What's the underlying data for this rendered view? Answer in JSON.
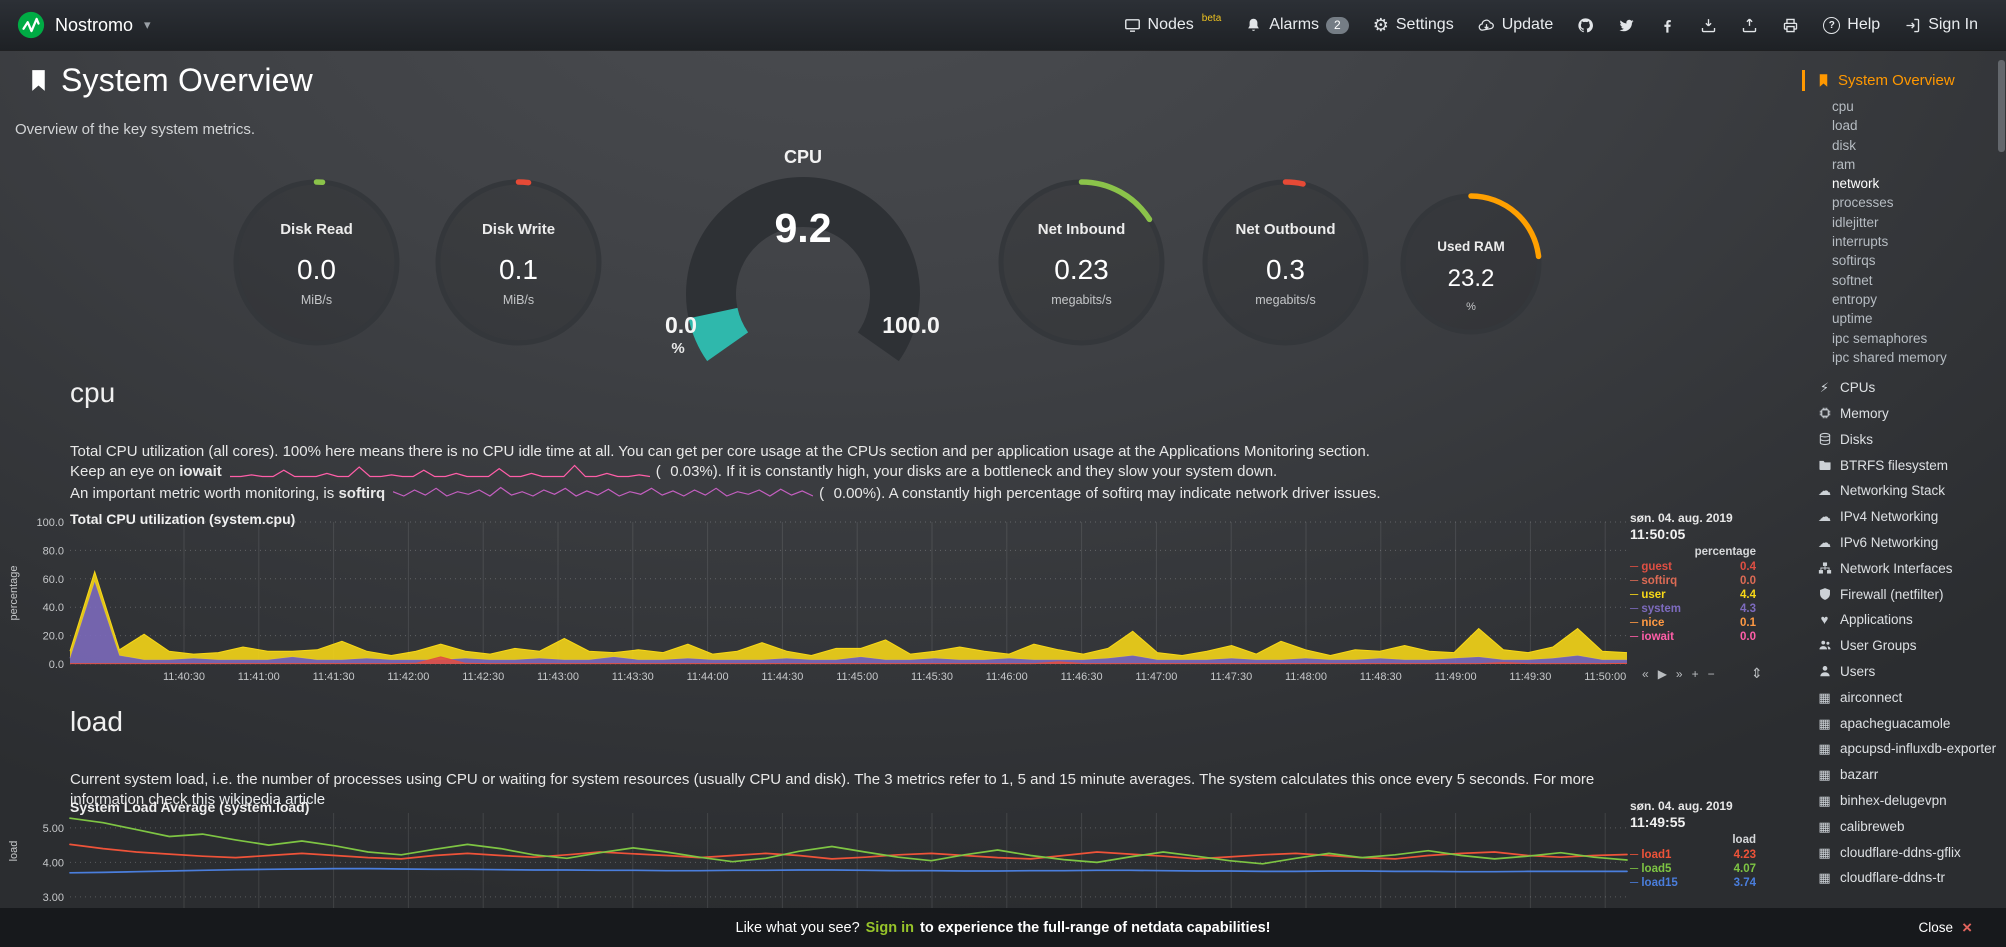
{
  "colors": {
    "signin_green": "#97c42a",
    "active_orange": "#ff9800",
    "close_red": "#e0635c",
    "beta_yellow": "#f0c420",
    "badge_bg": "#757d85"
  },
  "topbar": {
    "hostname": "Nostromo",
    "items": [
      {
        "label": "Nodes",
        "icon": "monitor-icon",
        "sup": "beta"
      },
      {
        "label": "Alarms",
        "icon": "bell-icon",
        "badge": "2"
      },
      {
        "label": "Settings",
        "icon": "gear-icon"
      },
      {
        "label": "Update",
        "icon": "cloud-update-icon"
      },
      {
        "icon": "github-icon"
      },
      {
        "icon": "twitter-icon"
      },
      {
        "icon": "facebook-icon"
      },
      {
        "icon": "download-icon"
      },
      {
        "icon": "upload-icon"
      },
      {
        "icon": "print-icon"
      },
      {
        "label": "Help",
        "icon": "help-icon"
      },
      {
        "label": "Sign In",
        "icon": "signin-icon"
      }
    ]
  },
  "header": {
    "title": "System Overview",
    "subtitle": "Overview of the key system metrics."
  },
  "gauges": [
    {
      "id": "disk_read",
      "label": "Disk Read",
      "value": "0.0",
      "unit": "MiB/s",
      "color": "#8bc34a",
      "fraction": 0.012
    },
    {
      "id": "disk_write",
      "label": "Disk Write",
      "value": "0.1",
      "unit": "MiB/s",
      "color": "#e64a36",
      "fraction": 0.02
    },
    {
      "id": "net_inbound",
      "label": "Net Inbound",
      "value": "0.23",
      "unit": "megabits/s",
      "color": "#8bc34a",
      "fraction": 0.16
    },
    {
      "id": "net_outbound",
      "label": "Net Outbound",
      "value": "0.3",
      "unit": "megabits/s",
      "color": "#e64a36",
      "fraction": 0.035
    },
    {
      "id": "used_ram",
      "label": "Used RAM",
      "value": "23.2",
      "unit": "%",
      "color": "#ffa000",
      "fraction": 0.232
    }
  ],
  "cpu_gauge": {
    "title": "CPU",
    "value": "9.2",
    "min": "0.0",
    "max": "100.0",
    "unit": "%",
    "fraction": 0.092,
    "color": "#2fb8ac"
  },
  "sections": {
    "cpu": {
      "heading": "cpu",
      "desc": {
        "line1": "Total CPU utilization (all cores). 100% here means there is no CPU idle time at all. You can get per core usage at the CPUs section and per application usage at the Applications Monitoring section.",
        "line2_pre": "Keep an eye on ",
        "line2_bold": "iowait",
        "line2_paren": "(",
        "line2_value": "0.03%",
        "line2_post": "). If it is constantly high, your disks are a bottleneck and they slow your system down.",
        "line3_pre": "An important metric worth monitoring, is ",
        "line3_bold": "softirq",
        "line3_paren": "(",
        "line3_value": "0.00%",
        "line3_post": "). A constantly high percentage of softirq may indicate network driver issues."
      }
    },
    "load": {
      "heading": "load",
      "desc_pre": "Current system load, i.e. the number of processes using CPU or waiting for system resources (usually CPU and disk). The 3 metrics refer to 1, 5 and 15 minute averages. The system calculates this once every 5 seconds. For more information check ",
      "desc_link": "this wikipedia article"
    }
  },
  "sparklines": {
    "iowait": {
      "color": "#ff5ea8",
      "values": [
        0,
        0,
        0.5,
        0,
        0,
        2,
        0,
        0,
        0,
        1,
        0,
        0,
        3,
        0,
        0,
        0.5,
        0,
        0,
        2,
        0,
        0,
        1,
        0,
        0,
        0,
        2.5,
        0,
        0,
        1,
        0,
        0,
        0,
        3.5,
        0,
        0,
        1,
        0,
        0,
        0.5,
        0
      ]
    },
    "softirq": {
      "color": "#c45fc0",
      "values": [
        0.8,
        0.3,
        1,
        0.4,
        1.2,
        0.3,
        0.8,
        0.5,
        1,
        0.3,
        1.3,
        0.4,
        0.8,
        0.3,
        1,
        0.5,
        1.2,
        0.3,
        0.9,
        0.4,
        1.1,
        0.3,
        0.8,
        0.5,
        1.2,
        0.4,
        0.9,
        0.3,
        1,
        0.4,
        1.2,
        0.3,
        0.8,
        0.5,
        1,
        0.3,
        1.1,
        0.4,
        0.9,
        0.3
      ]
    }
  },
  "chart_data": [
    {
      "id": "cpu",
      "type": "area",
      "title": "Total CPU utilization (system.cpu)",
      "date": "søn. 04. aug. 2019",
      "time": "11:50:05",
      "units": "percentage",
      "ylabel": "percentage",
      "ylim": [
        0,
        100
      ],
      "yticks": [
        "100.0",
        "80.0",
        "60.0",
        "40.0",
        "20.0",
        "0.0"
      ],
      "ytick_values": [
        100,
        80,
        60,
        40,
        20,
        0
      ],
      "xticks": [
        "11:40:30",
        "11:41:00",
        "11:41:30",
        "11:42:00",
        "11:42:30",
        "11:43:00",
        "11:43:30",
        "11:44:00",
        "11:44:30",
        "11:45:00",
        "11:45:30",
        "11:46:00",
        "11:46:30",
        "11:47:00",
        "11:47:30",
        "11:48:00",
        "11:48:30",
        "11:49:00",
        "11:49:30",
        "11:50:00"
      ],
      "legend": [
        {
          "name": "guest",
          "value": "0.4",
          "color": "#e04f43"
        },
        {
          "name": "softirq",
          "value": "0.0",
          "color": "#dd6b55"
        },
        {
          "name": "user",
          "value": "4.4",
          "color": "#f8d817"
        },
        {
          "name": "system",
          "value": "4.3",
          "color": "#7d6bbe"
        },
        {
          "name": "nice",
          "value": "0.1",
          "color": "#ff9943"
        },
        {
          "name": "iowait",
          "value": "0.0",
          "color": "#ff5ea8"
        }
      ],
      "series": [
        {
          "name": "system",
          "color": "#7d6bbe",
          "mode": "stack",
          "values": [
            4,
            58,
            6,
            3,
            3,
            4,
            3,
            3,
            3,
            5,
            3,
            3,
            4,
            3,
            3,
            3,
            4,
            3,
            3,
            4,
            3,
            3,
            5,
            3,
            3,
            4,
            3,
            3,
            3,
            4,
            3,
            3,
            5,
            3,
            3,
            4,
            3,
            3,
            4,
            3,
            3,
            3,
            4,
            6,
            3,
            3,
            3,
            4,
            3,
            3,
            4,
            3,
            3,
            4,
            3,
            3,
            4,
            5,
            3,
            3,
            4,
            6,
            3,
            3
          ]
        },
        {
          "name": "user",
          "color": "#f8d817",
          "mode": "stack",
          "values": [
            5,
            7,
            4,
            18,
            6,
            3,
            5,
            9,
            6,
            4,
            7,
            13,
            5,
            3,
            6,
            11,
            5,
            4,
            8,
            5,
            15,
            6,
            3,
            7,
            5,
            10,
            4,
            6,
            12,
            5,
            3,
            8,
            6,
            14,
            4,
            5,
            9,
            6,
            3,
            11,
            7,
            4,
            7,
            17,
            5,
            3,
            6,
            9,
            4,
            13,
            6,
            3,
            7,
            5,
            10,
            6,
            4,
            20,
            7,
            5,
            8,
            19,
            6,
            5
          ]
        },
        {
          "name": "guest",
          "color": "#e04f43",
          "mode": "overlay",
          "values": [
            0.3,
            0.3,
            0.3,
            0.3,
            0.3,
            0.3,
            0.3,
            0.3,
            0.3,
            0.3,
            0.3,
            0.3,
            0.3,
            0.3,
            0.5,
            5,
            0.5,
            0.3,
            0.3,
            0.3,
            0.3,
            0.3,
            0.3,
            0.3,
            0.3,
            0.3,
            0.3,
            0.3,
            0.3,
            0.3,
            0.3,
            0.3,
            0.3,
            0.3,
            0.3,
            0.3,
            0.3,
            0.3,
            0.3,
            0.3,
            1.5,
            0.3,
            0.3,
            0.3,
            0.3,
            0.3,
            0.3,
            0.3,
            0.3,
            0.3,
            0.3,
            0.3,
            0.3,
            0.3,
            0.3,
            0.3,
            0.3,
            0.3,
            1,
            0.3,
            0.3,
            0.3,
            0.3,
            0.4
          ]
        }
      ]
    },
    {
      "id": "load",
      "type": "line",
      "title": "System Load Average (system.load)",
      "date": "søn. 04. aug. 2019",
      "time": "11:49:55",
      "units": "load",
      "ylabel": "load",
      "ylim": [
        2.68,
        5.43
      ],
      "yticks": [
        "5.00",
        "4.00",
        "3.00"
      ],
      "ytick_values": [
        5,
        4,
        3
      ],
      "xticks": [],
      "legend": [
        {
          "name": "load1",
          "value": "4.23",
          "color": "#ef5339"
        },
        {
          "name": "load5",
          "value": "4.07",
          "color": "#7ec543"
        },
        {
          "name": "load15",
          "value": "3.74",
          "color": "#4a7edd"
        }
      ],
      "series": [
        {
          "name": "load15",
          "color": "#4a7edd",
          "mode": "line",
          "values": [
            3.7,
            3.71,
            3.73,
            3.75,
            3.77,
            3.79,
            3.8,
            3.81,
            3.82,
            3.82,
            3.81,
            3.8,
            3.8,
            3.79,
            3.78,
            3.78,
            3.77,
            3.77,
            3.76,
            3.76,
            3.77,
            3.77,
            3.78,
            3.78,
            3.77,
            3.76,
            3.76,
            3.75,
            3.75,
            3.76,
            3.76,
            3.77,
            3.77,
            3.76,
            3.75,
            3.75,
            3.74,
            3.74,
            3.75,
            3.75,
            3.74,
            3.74,
            3.73,
            3.73,
            3.74,
            3.74,
            3.74,
            3.74
          ]
        },
        {
          "name": "load1",
          "color": "#ef5339",
          "mode": "line",
          "values": [
            4.52,
            4.4,
            4.3,
            4.24,
            4.18,
            4.14,
            4.2,
            4.26,
            4.2,
            4.14,
            4.1,
            4.2,
            4.26,
            4.2,
            4.15,
            4.22,
            4.3,
            4.25,
            4.2,
            4.14,
            4.2,
            4.26,
            4.2,
            4.1,
            4.15,
            4.22,
            4.26,
            4.2,
            4.14,
            4.1,
            4.2,
            4.3,
            4.24,
            4.18,
            4.1,
            4.16,
            4.22,
            4.26,
            4.2,
            4.14,
            4.1,
            4.2,
            4.26,
            4.3,
            4.2,
            4.15,
            4.2,
            4.23
          ]
        },
        {
          "name": "load5",
          "color": "#7ec543",
          "mode": "line",
          "values": [
            5.28,
            5.15,
            4.95,
            4.75,
            4.82,
            4.65,
            4.5,
            4.62,
            4.48,
            4.3,
            4.22,
            4.38,
            4.52,
            4.4,
            4.22,
            4.12,
            4.28,
            4.42,
            4.3,
            4.15,
            4.02,
            4.12,
            4.32,
            4.46,
            4.3,
            4.15,
            4.05,
            4.22,
            4.36,
            4.2,
            4.08,
            4.0,
            4.16,
            4.3,
            4.18,
            4.05,
            3.96,
            4.12,
            4.26,
            4.14,
            4.22,
            4.34,
            4.2,
            4.1,
            4.18,
            4.28,
            4.15,
            4.07
          ]
        }
      ]
    }
  ],
  "sidebar": {
    "active": {
      "label": "System Overview",
      "icon": "bookmark-icon"
    },
    "highlight_sub": "network",
    "sub_items": [
      "cpu",
      "load",
      "disk",
      "ram",
      "network",
      "processes",
      "idlejitter",
      "interrupts",
      "softirqs",
      "softnet",
      "entropy",
      "uptime",
      "ipc semaphores",
      "ipc shared memory"
    ],
    "sections": [
      {
        "label": "CPUs",
        "icon": "bolt-icon"
      },
      {
        "label": "Memory",
        "icon": "chip-icon"
      },
      {
        "label": "Disks",
        "icon": "disk-icon"
      },
      {
        "label": "BTRFS filesystem",
        "icon": "folder-icon"
      },
      {
        "label": "Networking Stack",
        "icon": "cloud-icon"
      },
      {
        "label": "IPv4 Networking",
        "icon": "cloud-icon"
      },
      {
        "label": "IPv6 Networking",
        "icon": "cloud-icon"
      },
      {
        "label": "Network Interfaces",
        "icon": "sitemap-icon"
      },
      {
        "label": "Firewall (netfilter)",
        "icon": "shield-icon"
      },
      {
        "label": "Applications",
        "icon": "heart-icon"
      },
      {
        "label": "User Groups",
        "icon": "users-icon"
      },
      {
        "label": "Users",
        "icon": "user-icon"
      },
      {
        "label": "airconnect",
        "icon": "grid-icon"
      },
      {
        "label": "apacheguacamole",
        "icon": "grid-icon"
      },
      {
        "label": "apcupsd-influxdb-exporter",
        "icon": "grid-icon"
      },
      {
        "label": "bazarr",
        "icon": "grid-icon"
      },
      {
        "label": "binhex-delugevpn",
        "icon": "grid-icon"
      },
      {
        "label": "calibreweb",
        "icon": "grid-icon"
      },
      {
        "label": "cloudflare-ddns-gflix",
        "icon": "grid-icon"
      },
      {
        "label": "cloudflare-ddns-tr",
        "icon": "grid-icon"
      }
    ]
  },
  "footer": {
    "text_pre": "Like what you see?",
    "signin": "Sign in",
    "text_post": "to experience the full-range of netdata capabilities!",
    "close": "Close"
  }
}
